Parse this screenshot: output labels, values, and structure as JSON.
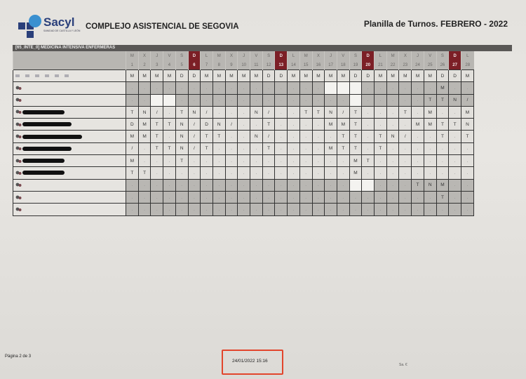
{
  "header": {
    "logo_text": "Sacyl",
    "logo_subtext": "SANIDAD DE CASTILLA Y LEÓN",
    "organization": "COMPLEJO ASISTENCIAL DE SEGOVIA",
    "planilla_title": "Planilla de Turnos. FEBRERO - 2022"
  },
  "table": {
    "unit_title": "[65_INTE_0] MEDICINA INTENSIVA ENFERMERAS",
    "sunday_color": "#7c1f26",
    "days": [
      {
        "wd": "M",
        "n": "1"
      },
      {
        "wd": "X",
        "n": "2"
      },
      {
        "wd": "J",
        "n": "3"
      },
      {
        "wd": "V",
        "n": "4"
      },
      {
        "wd": "S",
        "n": "5"
      },
      {
        "wd": "D",
        "n": "6"
      },
      {
        "wd": "L",
        "n": "7"
      },
      {
        "wd": "M",
        "n": "8"
      },
      {
        "wd": "X",
        "n": "9"
      },
      {
        "wd": "J",
        "n": "10"
      },
      {
        "wd": "V",
        "n": "11"
      },
      {
        "wd": "S",
        "n": "12"
      },
      {
        "wd": "D",
        "n": "13"
      },
      {
        "wd": "L",
        "n": "14"
      },
      {
        "wd": "M",
        "n": "15"
      },
      {
        "wd": "X",
        "n": "16"
      },
      {
        "wd": "J",
        "n": "17"
      },
      {
        "wd": "V",
        "n": "18"
      },
      {
        "wd": "S",
        "n": "19"
      },
      {
        "wd": "D",
        "n": "20"
      },
      {
        "wd": "L",
        "n": "21"
      },
      {
        "wd": "M",
        "n": "22"
      },
      {
        "wd": "X",
        "n": "23"
      },
      {
        "wd": "J",
        "n": "24"
      },
      {
        "wd": "V",
        "n": "25"
      },
      {
        "wd": "S",
        "n": "26"
      },
      {
        "wd": "D",
        "n": "27"
      },
      {
        "wd": "L",
        "n": "28"
      }
    ],
    "rows": [
      {
        "shade": "light",
        "name": "smudged",
        "shifts": [
          "M",
          "M",
          "M",
          "M",
          "D",
          "D",
          "M",
          "M",
          "M",
          "M",
          "M",
          "D",
          "D",
          "M",
          "M",
          "M",
          "M",
          "M",
          "D",
          "D",
          "M",
          "M",
          "M",
          "M",
          "M",
          "D",
          "D",
          "M"
        ]
      },
      {
        "shade": "gray",
        "name": "icon",
        "shifts": [
          ".",
          ".",
          ".",
          ".",
          ".",
          ".",
          ".",
          ".",
          ".",
          ".",
          ".",
          ".",
          ".",
          ".",
          ".",
          ".",
          "",
          "",
          "",
          ".",
          ".",
          ".",
          ".",
          ".",
          ".",
          "M",
          ".",
          "."
        ]
      },
      {
        "shade": "gray",
        "name": "icon",
        "shifts": [
          ".",
          ".",
          "",
          "",
          ".",
          ".",
          ".",
          ".",
          ".",
          ".",
          ".",
          ".",
          ".",
          ".",
          ".",
          ".",
          ".",
          ".",
          "",
          ".",
          ".",
          ".",
          ".",
          ".",
          "T",
          "T",
          "N",
          "/"
        ]
      },
      {
        "shade": "light",
        "name": "redacted",
        "shifts": [
          "T",
          "N",
          "/",
          ".",
          "T",
          "N",
          "/",
          ".",
          ".",
          ".",
          "N",
          "/",
          ".",
          ".",
          "T",
          "T",
          "N",
          "/",
          "T",
          ".",
          ".",
          ".",
          "T",
          ".",
          "M",
          ".",
          ".",
          "M"
        ]
      },
      {
        "shade": "light",
        "name": "redacted",
        "shifts": [
          "D",
          "M",
          "T",
          "T",
          "N",
          "/",
          "D",
          "N",
          "/",
          ".",
          ".",
          "T",
          ".",
          ".",
          ".",
          ".",
          "M",
          "M",
          "T",
          ".",
          ".",
          ".",
          ".",
          "M",
          "M",
          "T",
          "T",
          "N"
        ]
      },
      {
        "shade": "light",
        "name": "redacted",
        "shifts": [
          "M",
          "M",
          "T",
          ".",
          "N",
          "/",
          "T",
          "T",
          ".",
          ".",
          "N",
          "/",
          ".",
          ".",
          ".",
          ".",
          ".",
          "T",
          "T",
          ".",
          "T",
          "N",
          "/",
          ".",
          ".",
          "T",
          ".",
          "T"
        ]
      },
      {
        "shade": "light",
        "name": "redacted",
        "shifts": [
          "/",
          ".",
          "T",
          "T",
          "N",
          "/",
          "T",
          ".",
          ".",
          ".",
          ".",
          "T",
          ".",
          ".",
          ".",
          ".",
          "M",
          "T",
          "T",
          ".",
          "T",
          ".",
          ".",
          ".",
          ".",
          ".",
          ".",
          "."
        ]
      },
      {
        "shade": "light",
        "name": "redacted",
        "shifts": [
          "M",
          ".",
          ".",
          ".",
          "T",
          ".",
          ".",
          ".",
          ".",
          ".",
          ".",
          ".",
          ".",
          ".",
          ".",
          ".",
          ".",
          ".",
          "M",
          "T",
          ".",
          ".",
          ".",
          ".",
          ".",
          ".",
          ".",
          "."
        ]
      },
      {
        "shade": "light",
        "name": "redacted",
        "shifts": [
          "T",
          "T",
          ".",
          ".",
          ".",
          ".",
          ".",
          ".",
          ".",
          ".",
          ".",
          ".",
          ".",
          ".",
          ".",
          ".",
          ".",
          ".",
          "M",
          ".",
          ".",
          ".",
          ".",
          ".",
          ".",
          ".",
          ".",
          "."
        ]
      },
      {
        "shade": "gray",
        "name": "icon",
        "shifts": [
          ".",
          ".",
          ".",
          ".",
          ".",
          ".",
          ".",
          ".",
          ".",
          ".",
          ".",
          ".",
          ".",
          ".",
          ".",
          ".",
          ".",
          ".",
          "",
          "",
          ".",
          ".",
          ".",
          "T",
          "N",
          "M",
          ".",
          "."
        ]
      },
      {
        "shade": "gray",
        "name": "icon",
        "shifts": [
          ".",
          ".",
          ".",
          ".",
          ".",
          ".",
          ".",
          ".",
          ".",
          ".",
          ".",
          ".",
          ".",
          ".",
          ".",
          ".",
          ".",
          ".",
          ".",
          ".",
          ".",
          ".",
          ".",
          ".",
          ".",
          "T",
          ".",
          "."
        ]
      },
      {
        "shade": "gray",
        "name": "icon",
        "shifts": [
          ".",
          ".",
          ".",
          ".",
          ".",
          ".",
          ".",
          ".",
          ".",
          ".",
          ".",
          ".",
          ".",
          ".",
          ".",
          ".",
          ".",
          ".",
          ".",
          ".",
          ".",
          ".",
          ".",
          ".",
          ".",
          ".",
          ".",
          "."
        ]
      }
    ]
  },
  "footer": {
    "page_label": "Página 2 de 3",
    "print_timestamp": "24/01/2022 15:16",
    "signature_mark": "Sa. €"
  }
}
